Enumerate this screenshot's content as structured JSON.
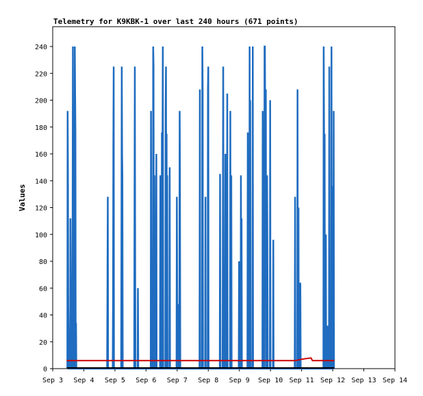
{
  "chart_data": {
    "type": "line",
    "title": "Telemetry for K9KBK-1 over last 240 hours (671 points)",
    "ylabel": "Values",
    "xlabel": "",
    "ylim": [
      0,
      255
    ],
    "xlim_days": [
      3,
      14
    ],
    "grid": false,
    "legend": "none",
    "y_ticks": [
      0,
      20,
      40,
      60,
      80,
      100,
      120,
      140,
      160,
      180,
      200,
      220,
      240
    ],
    "x_ticks": [
      "Sep 3",
      "Sep 4",
      "Sep 5",
      "Sep 6",
      "Sep 7",
      "Sep 8",
      "Sep 9",
      "Sep 10",
      "Sep 11",
      "Sep 12",
      "Sep 13",
      "Sep 14"
    ],
    "series": [
      {
        "color": "#1f6cc0",
        "points": [
          [
            3.47,
            0
          ],
          [
            3.48,
            192
          ],
          [
            3.49,
            145
          ],
          [
            3.5,
            48
          ],
          [
            3.52,
            0
          ],
          [
            3.56,
            0
          ],
          [
            3.57,
            112
          ],
          [
            3.58,
            64
          ],
          [
            3.59,
            0
          ],
          [
            3.63,
            0
          ],
          [
            3.64,
            120
          ],
          [
            3.65,
            240
          ],
          [
            3.66,
            96
          ],
          [
            3.67,
            120
          ],
          [
            3.68,
            0
          ],
          [
            3.7,
            0
          ],
          [
            3.71,
            240
          ],
          [
            3.72,
            208
          ],
          [
            3.73,
            176
          ],
          [
            3.74,
            0
          ],
          [
            3.75,
            34
          ],
          [
            3.76,
            0
          ],
          [
            4.75,
            0
          ],
          [
            4.76,
            64
          ],
          [
            4.77,
            128
          ],
          [
            4.78,
            0
          ],
          [
            4.93,
            0
          ],
          [
            4.94,
            56
          ],
          [
            4.95,
            168
          ],
          [
            4.96,
            225
          ],
          [
            4.97,
            0
          ],
          [
            5.2,
            0
          ],
          [
            5.21,
            112
          ],
          [
            5.22,
            225
          ],
          [
            5.23,
            160
          ],
          [
            5.24,
            144
          ],
          [
            5.25,
            0
          ],
          [
            5.62,
            0
          ],
          [
            5.63,
            112
          ],
          [
            5.64,
            225
          ],
          [
            5.65,
            72
          ],
          [
            5.66,
            0
          ],
          [
            5.73,
            0
          ],
          [
            5.74,
            60
          ],
          [
            5.75,
            0
          ],
          [
            6.15,
            0
          ],
          [
            6.16,
            192
          ],
          [
            6.17,
            64
          ],
          [
            6.18,
            0
          ],
          [
            6.22,
            0
          ],
          [
            6.23,
            240
          ],
          [
            6.24,
            225
          ],
          [
            6.25,
            72
          ],
          [
            6.26,
            0
          ],
          [
            6.27,
            144
          ],
          [
            6.28,
            0
          ],
          [
            6.32,
            0
          ],
          [
            6.33,
            160
          ],
          [
            6.34,
            0
          ],
          [
            6.45,
            0
          ],
          [
            6.46,
            144
          ],
          [
            6.47,
            0
          ],
          [
            6.5,
            0
          ],
          [
            6.51,
            176
          ],
          [
            6.52,
            112
          ],
          [
            6.53,
            176
          ],
          [
            6.54,
            240
          ],
          [
            6.55,
            0
          ],
          [
            6.62,
            0
          ],
          [
            6.63,
            192
          ],
          [
            6.64,
            225
          ],
          [
            6.65,
            80
          ],
          [
            6.66,
            175
          ],
          [
            6.67,
            0
          ],
          [
            6.68,
            144
          ],
          [
            6.69,
            0
          ],
          [
            6.75,
            0
          ],
          [
            6.76,
            150
          ],
          [
            6.77,
            0
          ],
          [
            6.98,
            0
          ],
          [
            6.99,
            128
          ],
          [
            7.0,
            64
          ],
          [
            7.01,
            0
          ],
          [
            7.02,
            48
          ],
          [
            7.03,
            0
          ],
          [
            7.07,
            0
          ],
          [
            7.08,
            192
          ],
          [
            7.09,
            144
          ],
          [
            7.1,
            0
          ],
          [
            7.72,
            0
          ],
          [
            7.73,
            208
          ],
          [
            7.74,
            0
          ],
          [
            7.8,
            0
          ],
          [
            7.81,
            240
          ],
          [
            7.82,
            208
          ],
          [
            7.83,
            0
          ],
          [
            7.9,
            0
          ],
          [
            7.91,
            128
          ],
          [
            7.92,
            0
          ],
          [
            7.98,
            0
          ],
          [
            7.99,
            208
          ],
          [
            8.0,
            225
          ],
          [
            8.01,
            0
          ],
          [
            8.37,
            0
          ],
          [
            8.38,
            145
          ],
          [
            8.39,
            0
          ],
          [
            8.46,
            0
          ],
          [
            8.47,
            112
          ],
          [
            8.48,
            225
          ],
          [
            8.49,
            80
          ],
          [
            8.5,
            0
          ],
          [
            8.54,
            0
          ],
          [
            8.55,
            160
          ],
          [
            8.56,
            0
          ],
          [
            8.6,
            0
          ],
          [
            8.61,
            205
          ],
          [
            8.62,
            0
          ],
          [
            8.7,
            0
          ],
          [
            8.71,
            192
          ],
          [
            8.72,
            0
          ],
          [
            8.73,
            16
          ],
          [
            8.74,
            144
          ],
          [
            8.75,
            0
          ],
          [
            8.98,
            0
          ],
          [
            8.99,
            80
          ],
          [
            9.0,
            0
          ],
          [
            9.04,
            0
          ],
          [
            9.05,
            144
          ],
          [
            9.06,
            0
          ],
          [
            9.07,
            112
          ],
          [
            9.08,
            0
          ],
          [
            9.26,
            0
          ],
          [
            9.27,
            176
          ],
          [
            9.28,
            0
          ],
          [
            9.32,
            0
          ],
          [
            9.33,
            240
          ],
          [
            9.34,
            0
          ],
          [
            9.35,
            200
          ],
          [
            9.36,
            0
          ],
          [
            9.42,
            0
          ],
          [
            9.43,
            240
          ],
          [
            9.44,
            0
          ],
          [
            9.74,
            0
          ],
          [
            9.75,
            192
          ],
          [
            9.76,
            128
          ],
          [
            9.77,
            64
          ],
          [
            9.78,
            0
          ],
          [
            9.8,
            0
          ],
          [
            9.81,
            240
          ],
          [
            9.82,
            240
          ],
          [
            9.83,
            176
          ],
          [
            9.84,
            112
          ],
          [
            9.85,
            208
          ],
          [
            9.86,
            0
          ],
          [
            9.88,
            0
          ],
          [
            9.89,
            144
          ],
          [
            9.9,
            96
          ],
          [
            9.91,
            0
          ],
          [
            9.98,
            0
          ],
          [
            9.99,
            200
          ],
          [
            10.0,
            0
          ],
          [
            10.08,
            0
          ],
          [
            10.09,
            96
          ],
          [
            10.1,
            0
          ],
          [
            10.78,
            0
          ],
          [
            10.79,
            128
          ],
          [
            10.8,
            0
          ],
          [
            10.86,
            0
          ],
          [
            10.87,
            208
          ],
          [
            10.88,
            0
          ],
          [
            10.89,
            64
          ],
          [
            10.9,
            120
          ],
          [
            10.91,
            0
          ],
          [
            10.95,
            0
          ],
          [
            10.96,
            64
          ],
          [
            10.97,
            0
          ],
          [
            11.7,
            0
          ],
          [
            11.71,
            240
          ],
          [
            11.72,
            180
          ],
          [
            11.73,
            120
          ],
          [
            11.74,
            175
          ],
          [
            11.75,
            0
          ],
          [
            11.77,
            0
          ],
          [
            11.78,
            100
          ],
          [
            11.79,
            0
          ],
          [
            11.82,
            0
          ],
          [
            11.83,
            32
          ],
          [
            11.84,
            0
          ],
          [
            11.88,
            0
          ],
          [
            11.89,
            225
          ],
          [
            11.9,
            0
          ],
          [
            11.95,
            0
          ],
          [
            11.96,
            240
          ],
          [
            11.97,
            0
          ],
          [
            12.0,
            0
          ],
          [
            12.01,
            136
          ],
          [
            12.02,
            0
          ],
          [
            12.03,
            192
          ],
          [
            12.04,
            0
          ]
        ]
      },
      {
        "color": "#cc0000",
        "points": [
          [
            3.45,
            6
          ],
          [
            6.0,
            6
          ],
          [
            8.0,
            6
          ],
          [
            9.0,
            6
          ],
          [
            10.0,
            6
          ],
          [
            10.8,
            6
          ],
          [
            11.0,
            7
          ],
          [
            11.3,
            8
          ],
          [
            11.35,
            6
          ],
          [
            12.05,
            6
          ]
        ]
      }
    ]
  }
}
